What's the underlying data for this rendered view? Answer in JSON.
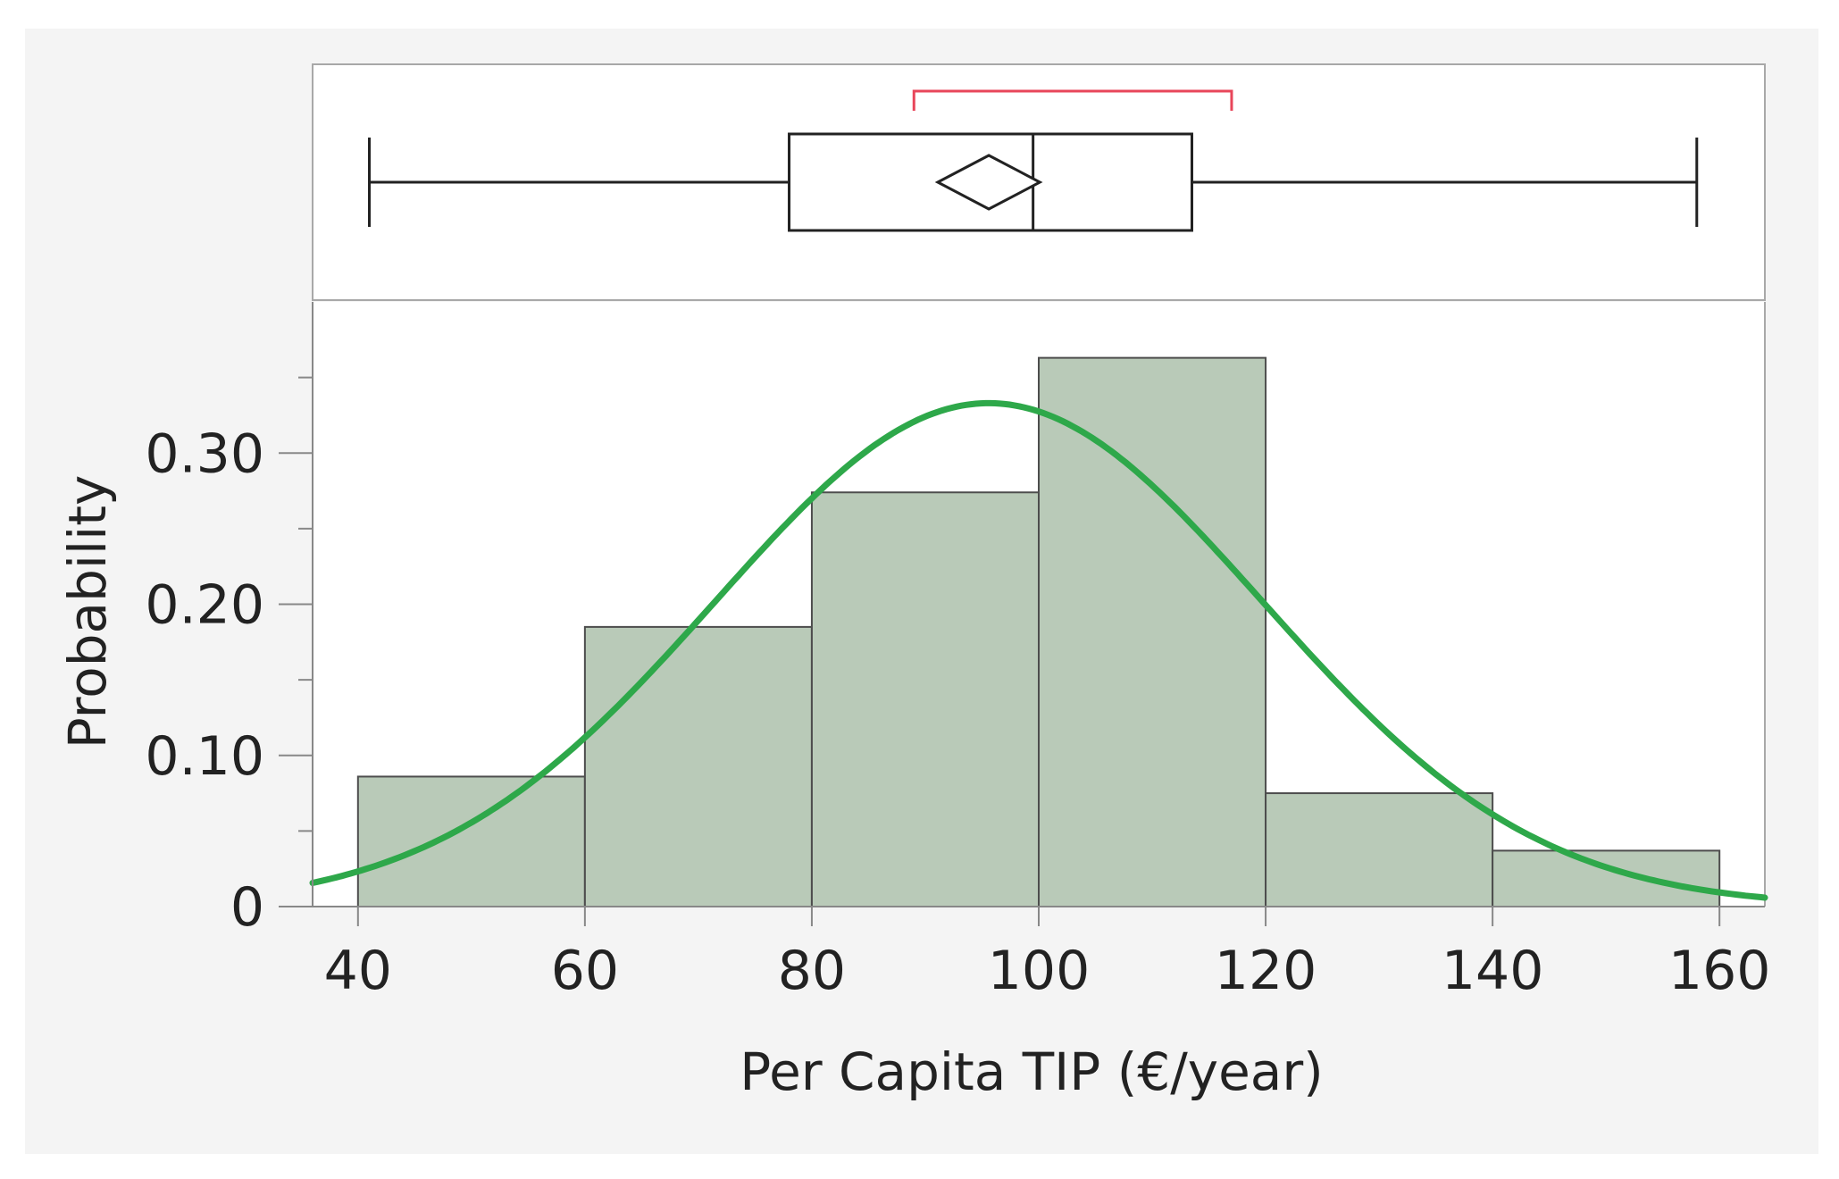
{
  "chart_data": {
    "type": "bar",
    "xlabel": "Per Capita TIP (€/year)",
    "ylabel": "Probability",
    "xlim": [
      36,
      164
    ],
    "ylim": [
      0,
      0.4
    ],
    "x_ticks": [
      40,
      60,
      80,
      100,
      120,
      140,
      160
    ],
    "y_ticks": [
      0,
      0.1,
      0.2,
      0.3
    ],
    "y_tick_labels": [
      "0",
      "0.10",
      "0.20",
      "0.30"
    ],
    "y_minor_ticks": [
      0.05,
      0.15,
      0.25,
      0.35
    ],
    "histogram": {
      "bin_edges": [
        40,
        60,
        80,
        100,
        120,
        140,
        160
      ],
      "values": [
        0.086,
        0.185,
        0.274,
        0.363,
        0.075,
        0.037
      ],
      "fill": "#b9cab8",
      "stroke": "#4d4d4d"
    },
    "normal_fit": {
      "mean": 95.6,
      "sd": 24.1,
      "peak": 0.333,
      "color": "#2ea84a"
    },
    "boxplot": {
      "min": 41,
      "q1": 78,
      "median": 99.5,
      "q3": 113.5,
      "max": 158,
      "mean": 95.6,
      "mean_diamond_halfwidth": 4.5,
      "shortest_half": [
        89,
        117
      ],
      "shortest_half_color": "#e8465a"
    },
    "grid": false
  }
}
